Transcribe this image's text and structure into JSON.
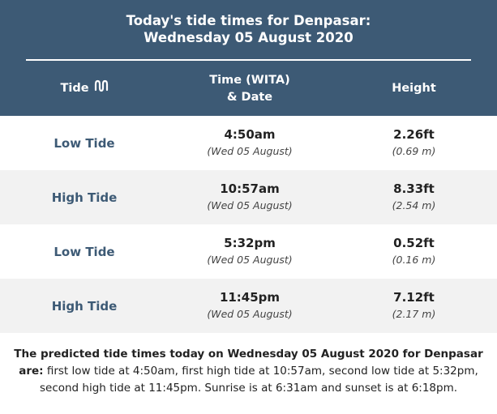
{
  "header": {
    "title_line1": "Today's tide times for Denpasar:",
    "title_line2": "Wednesday 05 August 2020",
    "col_tide": "Tide",
    "col_time_line1": "Time (WITA)",
    "col_time_line2": "& Date",
    "col_height": "Height",
    "tide_icon": "wave-icon"
  },
  "tides": [
    {
      "type": "Low Tide",
      "time": "4:50am",
      "date": "(Wed 05 August)",
      "height_ft": "2.26ft",
      "height_m": "(0.69 m)"
    },
    {
      "type": "High Tide",
      "time": "10:57am",
      "date": "(Wed 05 August)",
      "height_ft": "8.33ft",
      "height_m": "(2.54 m)"
    },
    {
      "type": "Low Tide",
      "time": "5:32pm",
      "date": "(Wed 05 August)",
      "height_ft": "0.52ft",
      "height_m": "(0.16 m)"
    },
    {
      "type": "High Tide",
      "time": "11:45pm",
      "date": "(Wed 05 August)",
      "height_ft": "7.12ft",
      "height_m": "(2.17 m)"
    }
  ],
  "summary": {
    "lead": "The predicted tide times today on Wednesday 05 August 2020 for Denpasar are:",
    "body": "first low tide at 4:50am, first high tide at 10:57am, second low tide at 5:32pm, second high tide at 11:45pm. Sunrise is at 6:31am and sunset is at 6:18pm."
  },
  "colors": {
    "header_bg": "#3d5a75",
    "header_text": "#ffffff",
    "tide_label": "#3d5a75",
    "row_alt_bg": "#f2f2f2"
  }
}
